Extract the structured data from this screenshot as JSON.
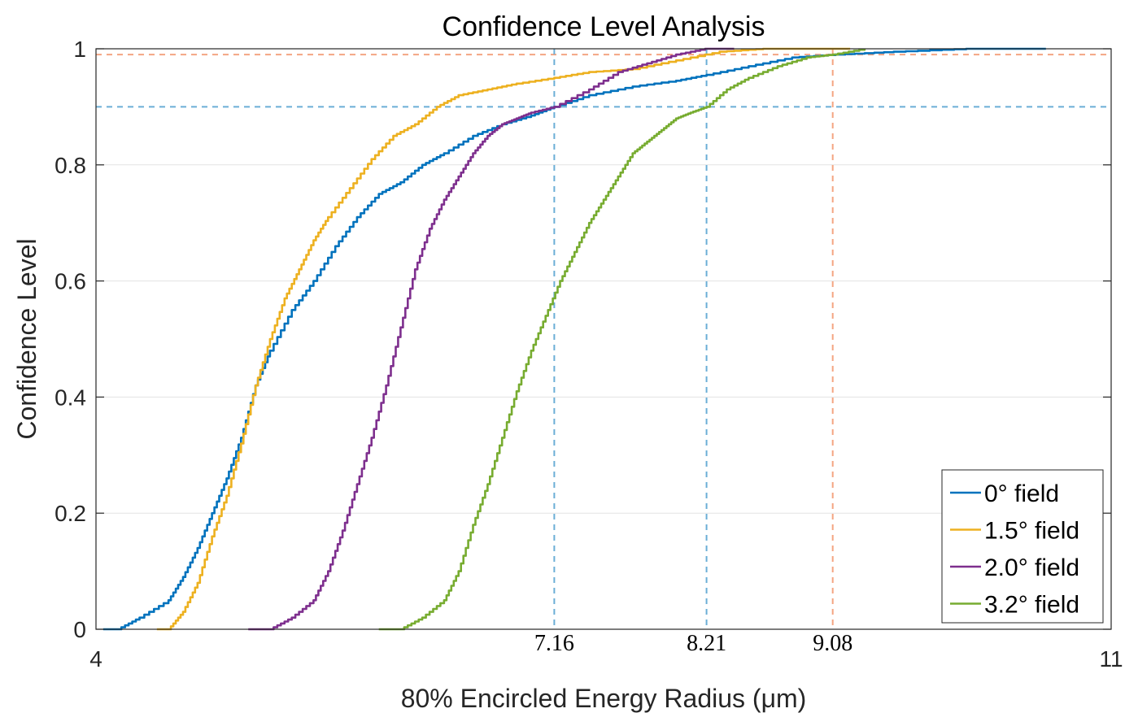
{
  "chart_data": {
    "type": "line",
    "title": "Confidence Level Analysis",
    "xlabel": "80% Encircled Energy Radius (μm)",
    "ylabel": "Confidence Level",
    "xlim": [
      4,
      11
    ],
    "ylim": [
      0,
      1
    ],
    "xticks": [
      4,
      11
    ],
    "xtick_labels": [
      "4",
      "11"
    ],
    "yticks": [
      0,
      0.2,
      0.4,
      0.6,
      0.8,
      1
    ],
    "ytick_labels": [
      "0",
      "0.2",
      "0.4",
      "0.6",
      "0.8",
      "1"
    ],
    "grid": true,
    "legend_position": "bottom-right",
    "reference_lines": {
      "horizontal": [
        {
          "y": 0.99,
          "color": "#f4a582"
        },
        {
          "y": 0.9,
          "color": "#6baed6"
        }
      ],
      "vertical": [
        {
          "x": 7.16,
          "label": "7.16",
          "color": "#6baed6"
        },
        {
          "x": 8.21,
          "label": "8.21",
          "color": "#6baed6"
        },
        {
          "x": 9.08,
          "label": "9.08",
          "color": "#f4a582"
        }
      ]
    },
    "series": [
      {
        "name": "0° field",
        "color": "#0072BD",
        "x": [
          4.05,
          4.15,
          4.3,
          4.5,
          4.6,
          4.7,
          4.8,
          4.9,
          5.0,
          5.1,
          5.2,
          5.35,
          5.5,
          5.65,
          5.8,
          5.95,
          6.1,
          6.25,
          6.4,
          6.6,
          6.8,
          7.0,
          7.16,
          7.4,
          7.7,
          8.0,
          8.21,
          8.5,
          8.8,
          9.1,
          9.5,
          10.0,
          10.55
        ],
        "y": [
          0.0,
          0.0,
          0.02,
          0.05,
          0.09,
          0.14,
          0.2,
          0.26,
          0.33,
          0.42,
          0.48,
          0.55,
          0.6,
          0.66,
          0.71,
          0.75,
          0.77,
          0.8,
          0.82,
          0.85,
          0.87,
          0.885,
          0.9,
          0.92,
          0.935,
          0.945,
          0.955,
          0.97,
          0.985,
          0.99,
          0.995,
          1.0,
          1.0
        ]
      },
      {
        "name": "1.5° field",
        "color": "#EDB120",
        "x": [
          4.42,
          4.5,
          4.6,
          4.7,
          4.8,
          4.9,
          5.0,
          5.1,
          5.2,
          5.3,
          5.4,
          5.5,
          5.6,
          5.75,
          5.9,
          6.05,
          6.2,
          6.35,
          6.5,
          6.7,
          6.9,
          7.16,
          7.4,
          7.7,
          8.0,
          8.3,
          8.6,
          8.9,
          9.2
        ],
        "y": [
          0.0,
          0.0,
          0.03,
          0.08,
          0.16,
          0.23,
          0.32,
          0.42,
          0.5,
          0.57,
          0.62,
          0.67,
          0.71,
          0.76,
          0.81,
          0.85,
          0.87,
          0.9,
          0.92,
          0.93,
          0.94,
          0.95,
          0.96,
          0.965,
          0.98,
          0.995,
          1.0,
          1.0,
          1.0
        ]
      },
      {
        "name": "2.0° field",
        "color": "#7E2F8E",
        "x": [
          5.05,
          5.2,
          5.35,
          5.5,
          5.6,
          5.7,
          5.8,
          5.9,
          6.0,
          6.1,
          6.2,
          6.3,
          6.4,
          6.5,
          6.6,
          6.7,
          6.8,
          6.9,
          7.0,
          7.16,
          7.4,
          7.6,
          7.8,
          8.0,
          8.2,
          8.4
        ],
        "y": [
          0.0,
          0.0,
          0.02,
          0.05,
          0.1,
          0.17,
          0.25,
          0.33,
          0.42,
          0.52,
          0.62,
          0.69,
          0.74,
          0.78,
          0.82,
          0.85,
          0.87,
          0.88,
          0.89,
          0.9,
          0.93,
          0.96,
          0.975,
          0.99,
          1.0,
          1.0
        ]
      },
      {
        "name": "3.2° field",
        "color": "#77AC30",
        "x": [
          5.95,
          6.1,
          6.25,
          6.4,
          6.5,
          6.6,
          6.7,
          6.8,
          6.9,
          7.0,
          7.1,
          7.2,
          7.3,
          7.4,
          7.5,
          7.6,
          7.7,
          7.8,
          7.9,
          8.0,
          8.1,
          8.21,
          8.35,
          8.5,
          8.7,
          8.9,
          9.08,
          9.3
        ],
        "y": [
          0.0,
          0.0,
          0.02,
          0.05,
          0.1,
          0.18,
          0.25,
          0.33,
          0.41,
          0.48,
          0.54,
          0.6,
          0.65,
          0.7,
          0.74,
          0.78,
          0.82,
          0.84,
          0.86,
          0.88,
          0.89,
          0.9,
          0.93,
          0.95,
          0.97,
          0.985,
          0.99,
          1.0
        ]
      }
    ]
  }
}
